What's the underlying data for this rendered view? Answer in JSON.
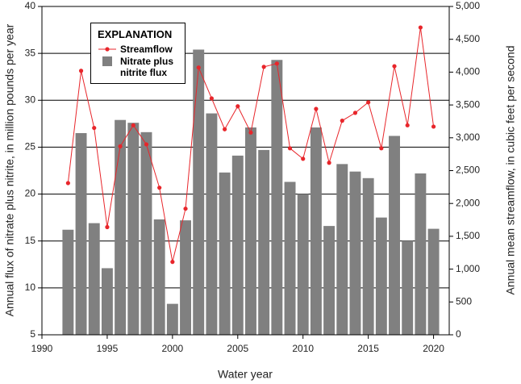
{
  "chart_data": {
    "type": "combo",
    "x_label": "Water year",
    "y_label": "Annual flux of nitrate plus nitrite, in million pounds per year",
    "y2_label": "Annual mean streamflow, in cubic feet per second",
    "legend_title": "EXPLANATION",
    "x": [
      1992,
      1993,
      1994,
      1995,
      1996,
      1997,
      1998,
      1999,
      2000,
      2001,
      2002,
      2003,
      2004,
      2005,
      2006,
      2007,
      2008,
      2009,
      2010,
      2011,
      2012,
      2013,
      2014,
      2015,
      2016,
      2017,
      2018,
      2019,
      2020
    ],
    "series": [
      {
        "name": "Streamflow",
        "type": "line",
        "axis": "y2",
        "color": "#e8262b",
        "values": [
          2310,
          4020,
          3150,
          1640,
          2870,
          3190,
          2900,
          2240,
          1110,
          1920,
          4070,
          3600,
          3130,
          3480,
          3080,
          4080,
          4130,
          2840,
          2680,
          3440,
          2620,
          3260,
          3380,
          3540,
          2840,
          4090,
          3190,
          4680,
          3170
        ]
      },
      {
        "name": "Nitrate plus nitrite flux",
        "type": "bar",
        "color": "#808080",
        "values": [
          16.2,
          26.5,
          16.9,
          12.1,
          27.9,
          27.6,
          26.6,
          17.3,
          8.3,
          17.2,
          35.4,
          28.6,
          22.3,
          24.1,
          27.1,
          24.7,
          34.3,
          21.3,
          20.0,
          27.1,
          16.6,
          23.2,
          22.4,
          21.7,
          17.5,
          26.2,
          15.0,
          22.2,
          16.3
        ]
      }
    ],
    "xlim": [
      1990,
      2021.2
    ],
    "xticks": [
      1990,
      1995,
      2000,
      2005,
      2010,
      2015,
      2020
    ],
    "ylim": [
      5,
      40
    ],
    "yticks": [
      5,
      10,
      15,
      20,
      25,
      30,
      35,
      40
    ],
    "y2lim": [
      0,
      5000
    ],
    "y2ticks": [
      0,
      500,
      {
        "value": 1000,
        "label": "1,000"
      },
      {
        "value": 1500,
        "label": "1,500"
      },
      {
        "value": 2000,
        "label": "2,000"
      },
      {
        "value": 2500,
        "label": "2,500"
      },
      {
        "value": 3000,
        "label": "3,000"
      },
      {
        "value": 3500,
        "label": "3,500"
      },
      {
        "value": 4000,
        "label": "4,000"
      },
      {
        "value": 4500,
        "label": "4,500"
      },
      {
        "value": 5000,
        "label": "5,000"
      }
    ],
    "grid": true,
    "legend_position": "upper-left"
  }
}
